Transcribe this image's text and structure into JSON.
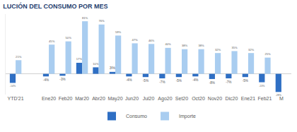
{
  "chart_data": {
    "type": "bar",
    "title": "LUCIÓN DEL CONSUMO POR MES",
    "categories": [
      "YTD'21",
      null,
      "Ene20",
      "Feb20",
      "Mar20",
      "Abr20",
      "May20",
      "Jun20",
      "Jul20",
      "Ago20",
      "Set20",
      "Oct20",
      "Nov20",
      "Dic20",
      "Ene21",
      "Feb21",
      "M"
    ],
    "series": [
      {
        "name": "Consumo",
        "color": "#2f6fc4",
        "values": [
          -14,
          null,
          -4,
          -3,
          17,
          10,
          3,
          -4,
          -5,
          -7,
          -5,
          -4,
          -8,
          -7,
          -5,
          -13,
          -28
        ],
        "value_labels": [
          "-14%",
          null,
          "-4%",
          "-3%",
          "17%",
          "10%",
          "3%",
          "-4%",
          "-5%",
          "-7%",
          "-5%",
          "-4%",
          "-8%",
          "-7%",
          "-5%",
          "-13%",
          "-28%"
        ]
      },
      {
        "name": "Importe",
        "color": "#a9cdf0",
        "values": [
          21,
          null,
          45,
          50,
          81,
          76,
          59,
          47,
          46,
          40,
          38,
          38,
          32,
          35,
          32,
          25,
          null
        ],
        "value_labels": [
          "21%",
          null,
          "45%",
          "50%",
          "81%",
          "76%",
          "59%",
          "47%",
          "46%",
          "40%",
          "38%",
          "38%",
          "32%",
          "35%",
          "32%",
          "25%",
          null
        ]
      }
    ],
    "ylim": [
      -32,
      92
    ],
    "grid": false,
    "data_labels": true,
    "tick_labels": "x",
    "legend": "bottom"
  }
}
